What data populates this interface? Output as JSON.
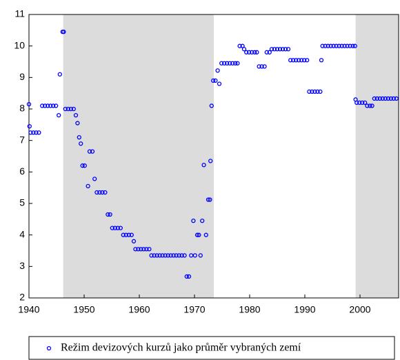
{
  "chart_data": {
    "type": "scatter",
    "legend_position": "bottom",
    "xlim": [
      1940,
      2007
    ],
    "xticks": [
      1940,
      1950,
      1960,
      1970,
      1980,
      1990,
      2000
    ],
    "ylim": [
      2,
      11
    ],
    "yticks": [
      2,
      3,
      4,
      5,
      6,
      7,
      8,
      9,
      10,
      11
    ],
    "shade_color": "#dcdcdc",
    "shaded_x_ranges": [
      [
        1946.2,
        1973.5
      ],
      [
        1999.2,
        2007
      ]
    ],
    "series": [
      {
        "name": "Režim devizových kurzů jako průměr vybraných zemí",
        "color": "#0000ff",
        "x": [
          1940,
          1940.1,
          1940.3,
          1940.8,
          1941.3,
          1941.8,
          1942.4,
          1942.9,
          1943.4,
          1943.9,
          1944.4,
          1944.9,
          1945.4,
          1945.6,
          1946.1,
          1946.3,
          1946.6,
          1947.1,
          1947.6,
          1948.1,
          1948.5,
          1948.8,
          1949.1,
          1949.4,
          1949.7,
          1950.1,
          1950.7,
          1951.0,
          1951.5,
          1951.9,
          1952.3,
          1952.8,
          1953.3,
          1953.8,
          1954.3,
          1954.7,
          1955.1,
          1955.6,
          1956.1,
          1956.6,
          1957.1,
          1957.6,
          1958.1,
          1958.6,
          1959.0,
          1959.3,
          1959.8,
          1960.3,
          1960.8,
          1961.3,
          1961.8,
          1962.2,
          1962.7,
          1963.2,
          1963.7,
          1964.2,
          1964.7,
          1965.2,
          1965.7,
          1966.2,
          1966.7,
          1967.2,
          1967.7,
          1968.2,
          1968.6,
          1969.0,
          1969.4,
          1969.8,
          1970.1,
          1970.5,
          1970.8,
          1971.1,
          1971.4,
          1971.7,
          1972.1,
          1972.5,
          1972.8,
          1972.9,
          1973.1,
          1973.4,
          1973.8,
          1974.2,
          1974.5,
          1974.9,
          1975.4,
          1975.9,
          1976.4,
          1976.9,
          1977.4,
          1977.8,
          1978.2,
          1978.7,
          1979.0,
          1979.4,
          1979.9,
          1980.4,
          1980.9,
          1981.3,
          1981.7,
          1982.2,
          1982.7,
          1983.1,
          1983.6,
          1984.0,
          1984.5,
          1985.0,
          1985.5,
          1986.0,
          1986.5,
          1987.0,
          1987.4,
          1987.9,
          1988.4,
          1988.9,
          1989.4,
          1989.9,
          1990.4,
          1990.8,
          1991.3,
          1991.8,
          1992.3,
          1992.8,
          1993.0,
          1993.2,
          1993.7,
          1994.2,
          1994.7,
          1995.2,
          1995.7,
          1996.2,
          1996.7,
          1997.2,
          1997.7,
          1998.2,
          1998.7,
          1999.1,
          1999.2,
          1999.4,
          1999.9,
          2000.4,
          2000.9,
          2001.3,
          2001.8,
          2002.2,
          2002.6,
          2003.1,
          2003.6,
          2004.1,
          2004.6,
          2005.1,
          2005.6,
          2006.1,
          2006.6
        ],
        "values": [
          8.15,
          7.45,
          7.25,
          7.25,
          7.25,
          7.25,
          8.1,
          8.1,
          8.1,
          8.1,
          8.1,
          8.1,
          7.8,
          9.1,
          10.45,
          10.45,
          8.0,
          8.0,
          8.0,
          8.0,
          7.8,
          7.55,
          7.1,
          6.9,
          6.2,
          6.2,
          5.55,
          6.65,
          6.65,
          5.78,
          5.35,
          5.35,
          5.35,
          5.35,
          4.65,
          4.65,
          4.22,
          4.22,
          4.22,
          4.22,
          4.0,
          4.0,
          4.0,
          4.0,
          3.8,
          3.55,
          3.55,
          3.55,
          3.55,
          3.55,
          3.55,
          3.35,
          3.35,
          3.35,
          3.35,
          3.35,
          3.35,
          3.35,
          3.35,
          3.35,
          3.35,
          3.35,
          3.35,
          3.35,
          2.68,
          2.68,
          3.35,
          4.45,
          3.35,
          4.0,
          4.0,
          3.35,
          4.45,
          6.22,
          4.0,
          5.12,
          5.12,
          6.35,
          8.1,
          8.9,
          8.9,
          9.22,
          8.8,
          9.45,
          9.45,
          9.45,
          9.45,
          9.45,
          9.45,
          9.45,
          10.0,
          10.0,
          9.9,
          9.8,
          9.8,
          9.8,
          9.8,
          9.8,
          9.35,
          9.35,
          9.35,
          9.8,
          9.8,
          9.9,
          9.9,
          9.9,
          9.9,
          9.9,
          9.9,
          9.9,
          9.55,
          9.55,
          9.55,
          9.55,
          9.55,
          9.55,
          9.55,
          8.55,
          8.55,
          8.55,
          8.55,
          8.55,
          9.55,
          10.0,
          10.0,
          10.0,
          10.0,
          10.0,
          10.0,
          10.0,
          10.0,
          10.0,
          10.0,
          10.0,
          10.0,
          10.0,
          8.3,
          8.2,
          8.2,
          8.2,
          8.2,
          8.1,
          8.1,
          8.1,
          8.33,
          8.33,
          8.33,
          8.33,
          8.33,
          8.33,
          8.33,
          8.33,
          8.33
        ]
      }
    ]
  }
}
